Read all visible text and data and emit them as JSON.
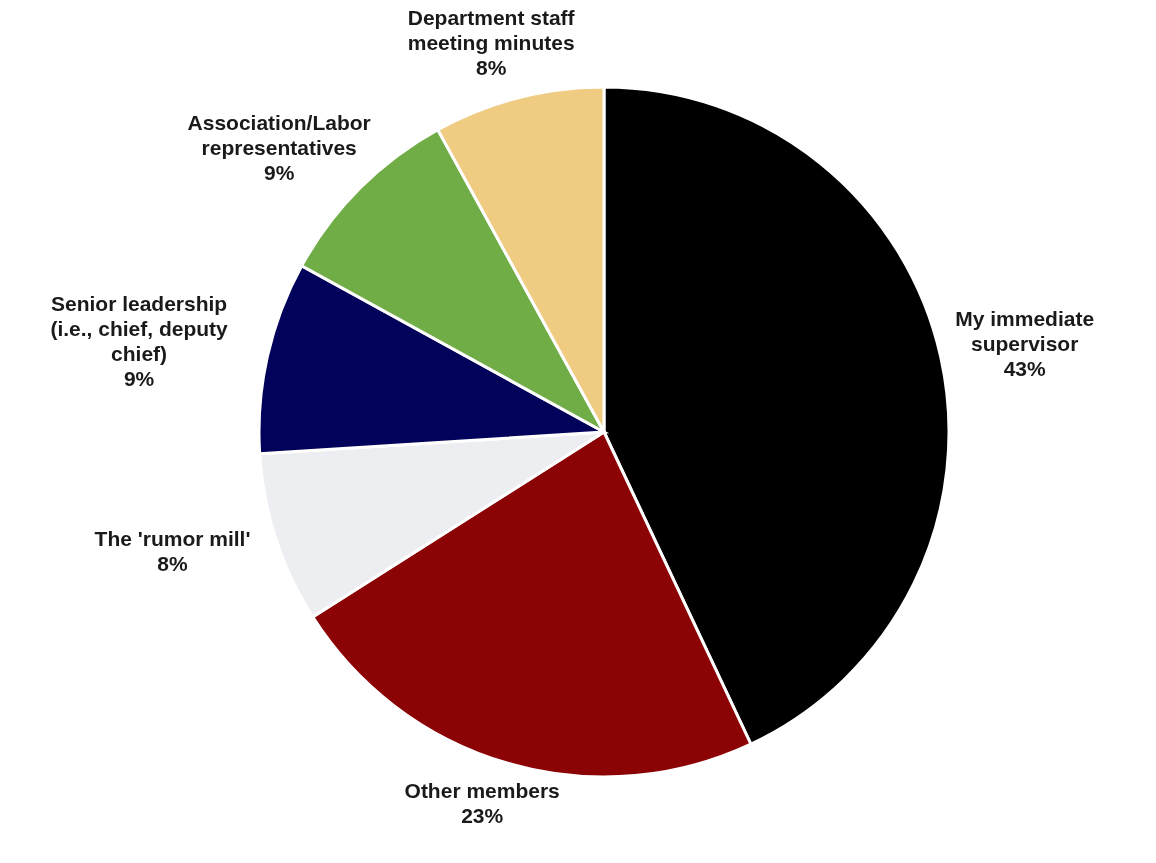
{
  "chart_data": {
    "type": "pie",
    "categories": [
      "My immediate supervisor",
      "Other members",
      "The 'rumor mill'",
      "Senior leadership (i.e., chief, deputy chief)",
      "Association/Labor representatives",
      "Department staff meeting minutes"
    ],
    "values": [
      43,
      23,
      8,
      9,
      9,
      8
    ],
    "value_labels": [
      "43%",
      "23%",
      "8%",
      "9%",
      "9%",
      "8%"
    ],
    "colors": [
      "#000000",
      "#8b0304",
      "#edeef2",
      "#02025a",
      "#70ad47",
      "#f0cb82"
    ]
  }
}
